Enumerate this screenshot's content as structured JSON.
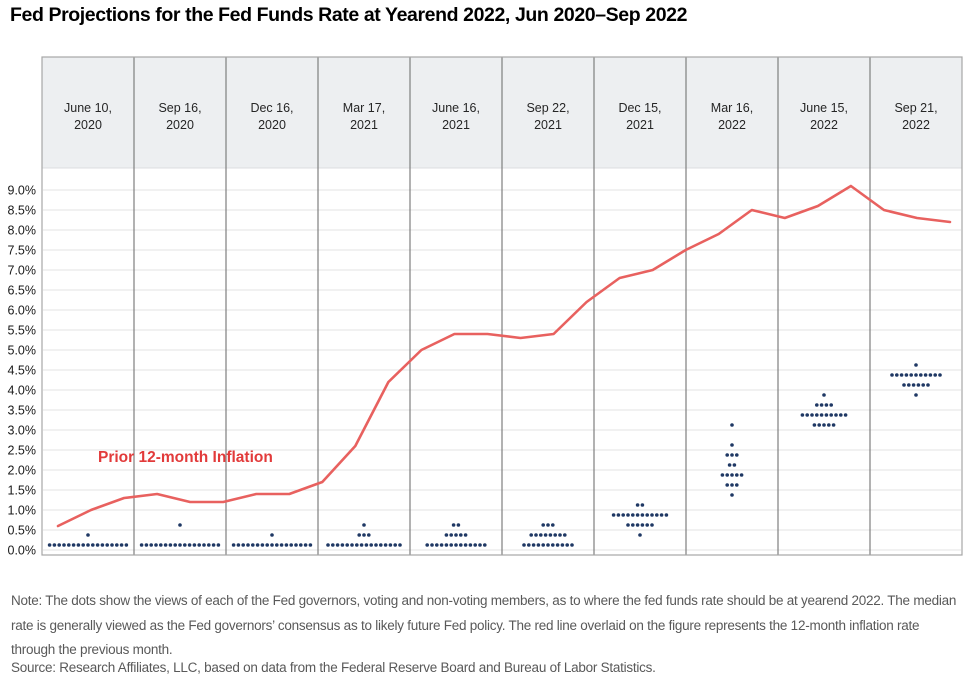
{
  "title": "Fed Projections for the Fed Funds Rate at Yearend 2022, Jun 2020–Sep 2022",
  "note": "Note: The dots show the views of each of the Fed governors, voting and non-voting members, as to where the fed funds rate should be at yearend 2022. The median rate is generally viewed as the Fed governors’ consensus as to likely future Fed policy. The red line overlaid on the figure represents the 12-month inflation rate through the previous month.",
  "source": "Source: Research Affiliates, LLC, based on data from the Federal Reserve Board and Bureau of Labor Statistics.",
  "colors": {
    "dot": "#1f3864",
    "line": "#e8615f",
    "annotation": "#e23a3a",
    "header_band": "#edeff1",
    "grid": "#e3e3e3",
    "separator": "#7f7f7f",
    "frame": "#a6a6a6",
    "axis_text": "#1a1a1a",
    "date_text": "#262626"
  },
  "chart_data": {
    "type": "scatter",
    "title": "Fed Projections for the Fed Funds Rate at Yearend 2022, Jun 2020–Sep 2022",
    "ylim": [
      0,
      9.5
    ],
    "y_tick_step": 0.5,
    "y_ticks": [
      "0.0%",
      "0.5%",
      "1.0%",
      "1.5%",
      "2.0%",
      "2.5%",
      "3.0%",
      "3.5%",
      "4.0%",
      "4.5%",
      "5.0%",
      "5.5%",
      "6.0%",
      "6.5%",
      "7.0%",
      "7.5%",
      "8.0%",
      "8.5%",
      "9.0%"
    ],
    "grid": "horizontal",
    "annotation": "Prior 12-month Inflation",
    "meetings": [
      {
        "date": "June 10, 2020",
        "date_line1": "June 10,",
        "date_line2": "2020",
        "dots": [
          {
            "rate": 0.125,
            "count": 17
          },
          {
            "rate": 0.375,
            "count": 1
          }
        ]
      },
      {
        "date": "Sep 16, 2020",
        "date_line1": "Sep 16,",
        "date_line2": "2020",
        "dots": [
          {
            "rate": 0.125,
            "count": 17
          },
          {
            "rate": 0.625,
            "count": 1
          }
        ]
      },
      {
        "date": "Dec 16, 2020",
        "date_line1": "Dec 16,",
        "date_line2": "2020",
        "dots": [
          {
            "rate": 0.125,
            "count": 17
          },
          {
            "rate": 0.375,
            "count": 1
          }
        ]
      },
      {
        "date": "Mar 17, 2021",
        "date_line1": "Mar 17,",
        "date_line2": "2021",
        "dots": [
          {
            "rate": 0.125,
            "count": 16
          },
          {
            "rate": 0.375,
            "count": 3
          },
          {
            "rate": 0.625,
            "count": 1
          }
        ]
      },
      {
        "date": "June 16, 2021",
        "date_line1": "June 16,",
        "date_line2": "2021",
        "dots": [
          {
            "rate": 0.125,
            "count": 13
          },
          {
            "rate": 0.375,
            "count": 5
          },
          {
            "rate": 0.625,
            "count": 2
          }
        ]
      },
      {
        "date": "Sep 22, 2021",
        "date_line1": "Sep 22,",
        "date_line2": "2021",
        "dots": [
          {
            "rate": 0.125,
            "count": 11
          },
          {
            "rate": 0.375,
            "count": 8
          },
          {
            "rate": 0.625,
            "count": 3
          }
        ]
      },
      {
        "date": "Dec 15, 2021",
        "date_line1": "Dec 15,",
        "date_line2": "2021",
        "dots": [
          {
            "rate": 0.375,
            "count": 1
          },
          {
            "rate": 0.625,
            "count": 6
          },
          {
            "rate": 0.875,
            "count": 12
          },
          {
            "rate": 1.125,
            "count": 2
          }
        ]
      },
      {
        "date": "Mar 16, 2022",
        "date_line1": "Mar 16,",
        "date_line2": "2022",
        "dots": [
          {
            "rate": 1.375,
            "count": 1
          },
          {
            "rate": 1.625,
            "count": 3
          },
          {
            "rate": 1.875,
            "count": 5
          },
          {
            "rate": 2.125,
            "count": 2
          },
          {
            "rate": 2.375,
            "count": 3
          },
          {
            "rate": 2.625,
            "count": 1
          },
          {
            "rate": 3.125,
            "count": 1
          }
        ]
      },
      {
        "date": "June 15, 2022",
        "date_line1": "June 15,",
        "date_line2": "2022",
        "dots": [
          {
            "rate": 3.125,
            "count": 5
          },
          {
            "rate": 3.375,
            "count": 10
          },
          {
            "rate": 3.625,
            "count": 4
          },
          {
            "rate": 3.875,
            "count": 1
          }
        ]
      },
      {
        "date": "Sep 21, 2022",
        "date_line1": "Sep 21,",
        "date_line2": "2022",
        "dots": [
          {
            "rate": 3.875,
            "count": 1
          },
          {
            "rate": 4.125,
            "count": 6
          },
          {
            "rate": 4.375,
            "count": 11
          },
          {
            "rate": 4.625,
            "count": 1
          }
        ]
      }
    ],
    "inflation_line": {
      "label": "Prior 12-month Inflation",
      "months": [
        "Jun 2020",
        "Jul 2020",
        "Aug 2020",
        "Sep 2020",
        "Oct 2020",
        "Nov 2020",
        "Dec 2020",
        "Jan 2021",
        "Feb 2021",
        "Mar 2021",
        "Apr 2021",
        "May 2021",
        "Jun 2021",
        "Jul 2021",
        "Aug 2021",
        "Sep 2021",
        "Oct 2021",
        "Nov 2021",
        "Dec 2021",
        "Jan 2022",
        "Feb 2022",
        "Mar 2022",
        "Apr 2022",
        "May 2022",
        "Jun 2022",
        "Jul 2022",
        "Aug 2022",
        "Sep 2022"
      ],
      "values": [
        0.6,
        1.0,
        1.3,
        1.4,
        1.2,
        1.2,
        1.4,
        1.4,
        1.7,
        2.6,
        4.2,
        5.0,
        5.4,
        5.4,
        5.3,
        5.4,
        6.2,
        6.8,
        7.0,
        7.5,
        7.9,
        8.5,
        8.3,
        8.6,
        9.1,
        8.5,
        8.3,
        8.2
      ]
    }
  }
}
